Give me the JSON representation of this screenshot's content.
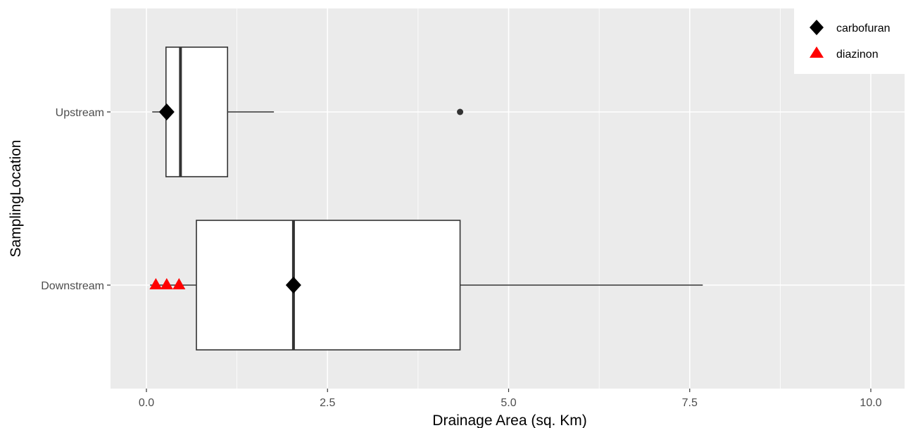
{
  "chart_data": {
    "type": "boxplot",
    "orientation": "horizontal",
    "xlabel": "Drainage Area (sq. Km)",
    "ylabel": "SamplingLocation",
    "xlim": [
      -0.5,
      10.5
    ],
    "x_ticks": [
      0,
      2.5,
      5,
      7.5,
      10
    ],
    "x_tick_labels": [
      "0.0",
      "2.5",
      "5.0",
      "7.5",
      "10.0"
    ],
    "categories": [
      "Upstream",
      "Downstream"
    ],
    "grid": true,
    "legend_position": "top-right",
    "boxes": [
      {
        "category": "Upstream",
        "whisker_low": 0.08,
        "q1": 0.27,
        "median": 0.47,
        "q3": 1.12,
        "whisker_high": 1.76,
        "outliers": [
          4.33
        ]
      },
      {
        "category": "Downstream",
        "whisker_low": 0.05,
        "q1": 0.69,
        "median": 2.03,
        "q3": 4.33,
        "whisker_high": 7.68,
        "outliers": []
      }
    ],
    "series": [
      {
        "name": "carbofuran",
        "marker": "diamond",
        "color": "#000000",
        "points": [
          {
            "category": "Upstream",
            "x": 0.28
          },
          {
            "category": "Downstream",
            "x": 2.03
          }
        ]
      },
      {
        "name": "diazinon",
        "marker": "triangle",
        "color": "#ff0000",
        "points": [
          {
            "category": "Downstream",
            "x": 0.13
          },
          {
            "category": "Downstream",
            "x": 0.28
          },
          {
            "category": "Downstream",
            "x": 0.45
          }
        ]
      }
    ],
    "colors": {
      "panel_background": "#ebebeb",
      "grid_major": "#ffffff",
      "box_fill": "#ffffff",
      "box_stroke": "#333333"
    }
  }
}
